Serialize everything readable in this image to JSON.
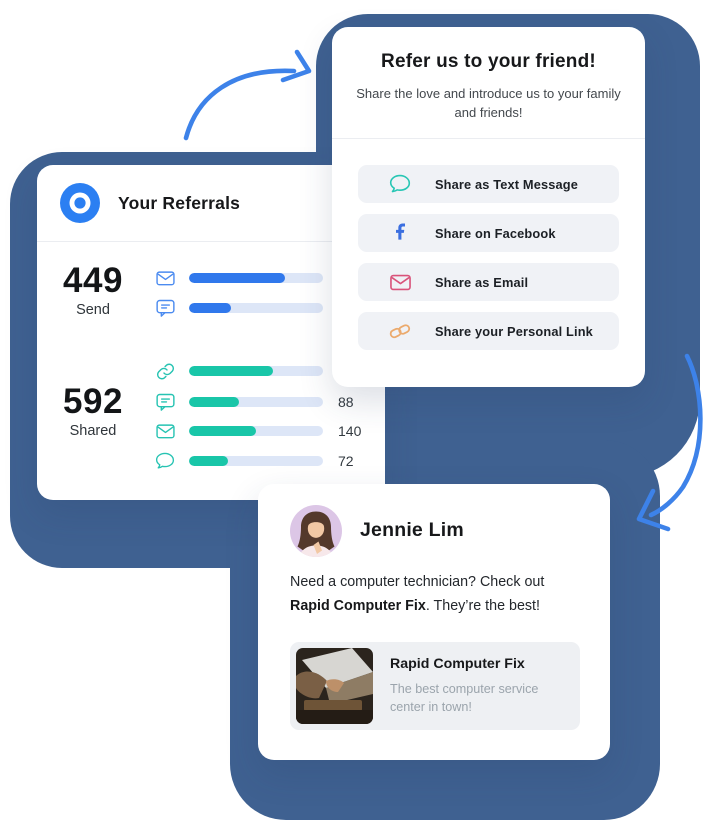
{
  "colors": {
    "blob": "#3f6191",
    "accent_blue": "#2b7ff2",
    "teal": "#19c6a8",
    "facebook_blue": "#3b6fe0",
    "email_pink": "#d9537a",
    "link_orange": "#ebaa6d",
    "bar_track": "#dde6f7",
    "arrow_blue": "#3d82e9"
  },
  "refer_card": {
    "title": "Refer us to your friend!",
    "subtitle": "Share the love and introduce us to your family and friends!",
    "buttons": [
      {
        "icon": "chat-bubble-icon",
        "label": "Share as Text Message"
      },
      {
        "icon": "facebook-icon",
        "label": "Share on Facebook"
      },
      {
        "icon": "email-icon",
        "label": "Share as Email"
      },
      {
        "icon": "link-icon",
        "label": "Share your Personal Link"
      }
    ]
  },
  "referrals_card": {
    "title": "Your Referrals",
    "send": {
      "value": "449",
      "label": "Send",
      "rows": [
        {
          "icon": "envelope-icon",
          "percent": 72
        },
        {
          "icon": "message-square-icon",
          "percent": 31
        }
      ]
    },
    "shared": {
      "value": "592",
      "label": "Shared",
      "rows": [
        {
          "icon": "link-icon",
          "percent": 63
        },
        {
          "icon": "message-square-icon",
          "percent": 37,
          "count": "88"
        },
        {
          "icon": "envelope-icon",
          "percent": 50,
          "count": "140"
        },
        {
          "icon": "chat-bubble-icon",
          "percent": 29,
          "count": "72"
        }
      ]
    }
  },
  "chat_card": {
    "name": "Jennie Lim",
    "message": {
      "part1": "Need a computer technician? Check out",
      "bold": "Rapid Computer Fix",
      "part2": ". They’re the best!"
    },
    "preview": {
      "title": "Rapid Computer Fix",
      "description": "The best computer service center in town!"
    }
  }
}
